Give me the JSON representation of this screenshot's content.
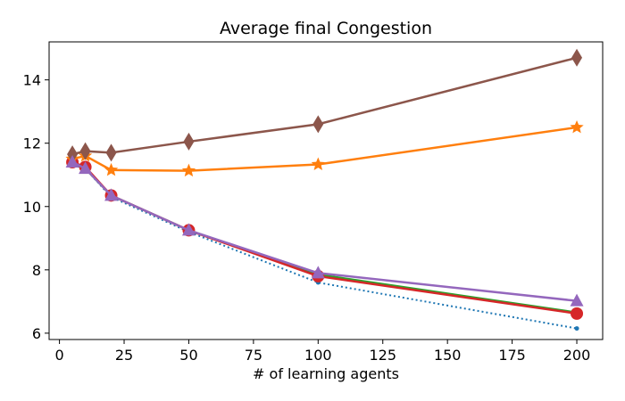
{
  "chart_data": {
    "type": "line",
    "title": "Average final Congestion",
    "xlabel": "# of learning agents",
    "ylabel": "",
    "xlim": [
      -4,
      210
    ],
    "ylim": [
      5.8,
      15.2
    ],
    "xticks": [
      0,
      25,
      50,
      75,
      100,
      125,
      150,
      175,
      200
    ],
    "yticks": [
      6,
      8,
      10,
      12,
      14
    ],
    "grid": false,
    "x": [
      5,
      10,
      20,
      50,
      100,
      200
    ],
    "series": [
      {
        "name": "dotted",
        "color": "#1f77b4",
        "style": "dotted",
        "marker": "point",
        "values": [
          11.3,
          11.2,
          10.3,
          9.2,
          7.6,
          6.15
        ]
      },
      {
        "name": "green",
        "color": "#2ca02c",
        "style": "solid",
        "marker": "none",
        "values": [
          11.35,
          11.2,
          10.35,
          9.25,
          7.85,
          6.65
        ]
      },
      {
        "name": "red",
        "color": "#d62728",
        "style": "solid",
        "marker": "circle",
        "values": [
          11.4,
          11.25,
          10.35,
          9.25,
          7.8,
          6.62
        ]
      },
      {
        "name": "orange",
        "color": "#ff7f0e",
        "style": "solid",
        "marker": "star",
        "values": [
          11.5,
          11.6,
          11.15,
          11.13,
          11.33,
          12.5
        ]
      },
      {
        "name": "brown",
        "color": "#8c564b",
        "style": "solid",
        "marker": "diamond",
        "values": [
          11.65,
          11.75,
          11.7,
          12.05,
          12.6,
          14.7
        ]
      },
      {
        "name": "purple",
        "color": "#9467bd",
        "style": "solid",
        "marker": "triangle",
        "values": [
          11.4,
          11.2,
          10.35,
          9.25,
          7.9,
          7.02
        ]
      }
    ]
  }
}
